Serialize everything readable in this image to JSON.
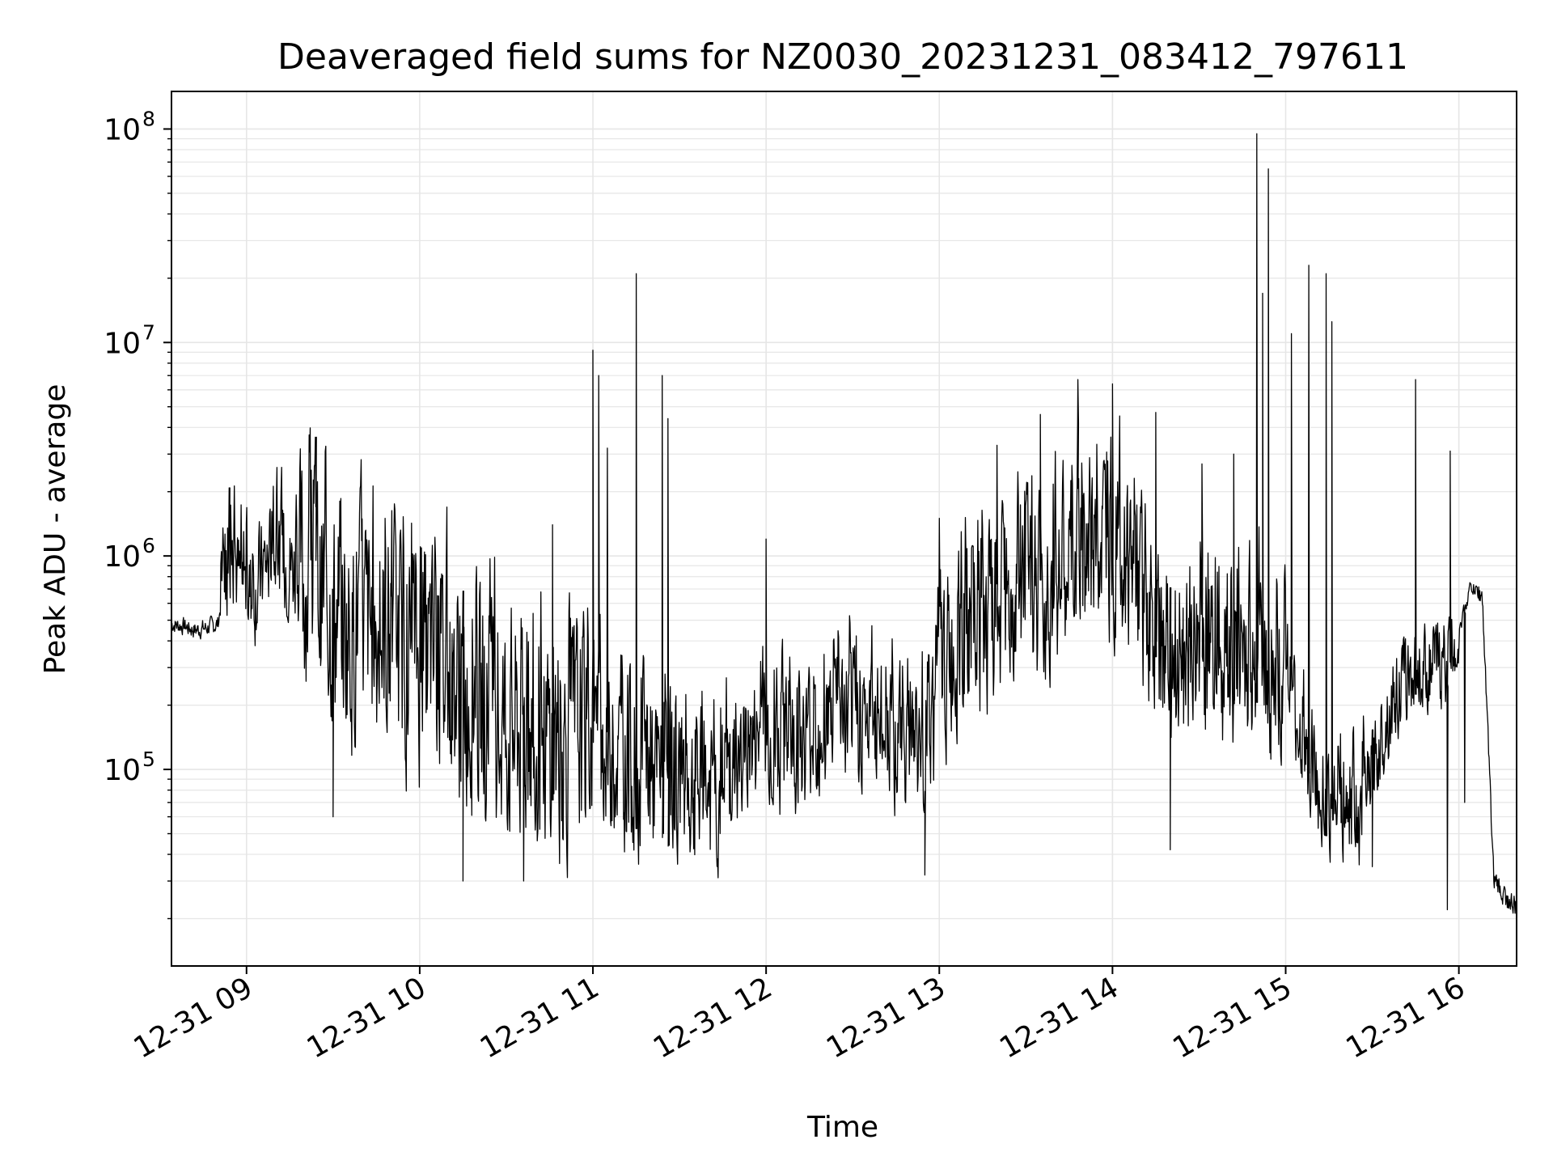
{
  "chart_data": {
    "type": "line",
    "title": "Deaveraged field sums for NZ0030_20231231_083412_797611",
    "xlabel": "Time",
    "ylabel": "Peak ADU - average",
    "yscale": "log",
    "ylim": [
      12000,
      150000000
    ],
    "xlim": [
      "2023-12-31 08:34",
      "2023-12-31 16:20"
    ],
    "grid": true,
    "line_color": "#000000",
    "grid_color": "#e6e6e6",
    "x_ticks": [
      {
        "label": "12-31 09",
        "value": "2023-12-31 09:00"
      },
      {
        "label": "12-31 10",
        "value": "2023-12-31 10:00"
      },
      {
        "label": "12-31 11",
        "value": "2023-12-31 11:00"
      },
      {
        "label": "12-31 12",
        "value": "2023-12-31 12:00"
      },
      {
        "label": "12-31 13",
        "value": "2023-12-31 13:00"
      },
      {
        "label": "12-31 14",
        "value": "2023-12-31 14:00"
      },
      {
        "label": "12-31 15",
        "value": "2023-12-31 15:00"
      },
      {
        "label": "12-31 16",
        "value": "2023-12-31 16:00"
      }
    ],
    "y_ticks": [
      {
        "base": "10",
        "exp": "5",
        "value": 100000
      },
      {
        "base": "10",
        "exp": "6",
        "value": 1000000
      },
      {
        "base": "10",
        "exp": "7",
        "value": 10000000
      },
      {
        "base": "10",
        "exp": "8",
        "value": 100000000
      }
    ],
    "series": [
      {
        "x": [
          "2023-12-31 08:34",
          "2023-12-31 08:38",
          "2023-12-31 08:42",
          "2023-12-31 08:46",
          "2023-12-31 08:50",
          "2023-12-31 08:53",
          "2023-12-31 08:55",
          "2023-12-31 08:58",
          "2023-12-31 09:02",
          "2023-12-31 09:06",
          "2023-12-31 09:10",
          "2023-12-31 09:15",
          "2023-12-31 09:20",
          "2023-12-31 09:25",
          "2023-12-31 09:30",
          "2023-12-31 09:35",
          "2023-12-31 09:40",
          "2023-12-31 09:45",
          "2023-12-31 09:50",
          "2023-12-31 09:55",
          "2023-12-31 10:00",
          "2023-12-31 10:05",
          "2023-12-31 10:10",
          "2023-12-31 10:15",
          "2023-12-31 10:20",
          "2023-12-31 10:25",
          "2023-12-31 10:30",
          "2023-12-31 10:35",
          "2023-12-31 10:40",
          "2023-12-31 10:45",
          "2023-12-31 10:50",
          "2023-12-31 10:55",
          "2023-12-31 11:00",
          "2023-12-31 11:05",
          "2023-12-31 11:10",
          "2023-12-31 11:15",
          "2023-12-31 11:20",
          "2023-12-31 11:25",
          "2023-12-31 11:30",
          "2023-12-31 11:35",
          "2023-12-31 11:40",
          "2023-12-31 11:45",
          "2023-12-31 11:50",
          "2023-12-31 11:55",
          "2023-12-31 12:00",
          "2023-12-31 12:05",
          "2023-12-31 12:10",
          "2023-12-31 12:15",
          "2023-12-31 12:20",
          "2023-12-31 12:25",
          "2023-12-31 12:30",
          "2023-12-31 12:35",
          "2023-12-31 12:40",
          "2023-12-31 12:45",
          "2023-12-31 12:50",
          "2023-12-31 12:55",
          "2023-12-31 13:00",
          "2023-12-31 13:05",
          "2023-12-31 13:10",
          "2023-12-31 13:15",
          "2023-12-31 13:20",
          "2023-12-31 13:25",
          "2023-12-31 13:30",
          "2023-12-31 13:35",
          "2023-12-31 13:40",
          "2023-12-31 13:45",
          "2023-12-31 13:50",
          "2023-12-31 13:55",
          "2023-12-31 14:00",
          "2023-12-31 14:05",
          "2023-12-31 14:10",
          "2023-12-31 14:15",
          "2023-12-31 14:20",
          "2023-12-31 14:25",
          "2023-12-31 14:30",
          "2023-12-31 14:35",
          "2023-12-31 14:40",
          "2023-12-31 14:45",
          "2023-12-31 14:50",
          "2023-12-31 14:55",
          "2023-12-31 15:00",
          "2023-12-31 15:05",
          "2023-12-31 15:10",
          "2023-12-31 15:15",
          "2023-12-31 15:20",
          "2023-12-31 15:25",
          "2023-12-31 15:30",
          "2023-12-31 15:35",
          "2023-12-31 15:40",
          "2023-12-31 15:45",
          "2023-12-31 15:50",
          "2023-12-31 15:55",
          "2023-12-31 16:00",
          "2023-12-31 16:04",
          "2023-12-31 16:08",
          "2023-12-31 16:12",
          "2023-12-31 16:16",
          "2023-12-31 16:20"
        ],
        "y": [
          480000,
          470000,
          450000,
          460000,
          480000,
          900000,
          1000000,
          700000,
          650000,
          900000,
          1000000,
          900000,
          800000,
          700000,
          550000,
          450000,
          500000,
          420000,
          380000,
          350000,
          320000,
          300000,
          260000,
          230000,
          200000,
          180000,
          160000,
          150000,
          140000,
          130000,
          130000,
          150000,
          170000,
          120000,
          110000,
          100000,
          90000,
          85000,
          80000,
          80000,
          75000,
          78000,
          100000,
          130000,
          140000,
          130000,
          120000,
          150000,
          170000,
          180000,
          170000,
          160000,
          150000,
          140000,
          140000,
          120000,
          280000,
          350000,
          400000,
          450000,
          500000,
          550000,
          600000,
          700000,
          800000,
          900000,
          1000000,
          1100000,
          1200000,
          1000000,
          600000,
          450000,
          300000,
          250000,
          400000,
          350000,
          300000,
          320000,
          350000,
          300000,
          250000,
          140000,
          90000,
          70000,
          60000,
          55000,
          100000,
          180000,
          250000,
          290000,
          300000,
          320000,
          450000,
          720000,
          650000,
          30000,
          25000,
          22000
        ],
        "peaks": [
          {
            "x": "2023-12-31 08:54",
            "y": 2000000
          },
          {
            "x": "2023-12-31 09:24",
            "y": 1700000
          },
          {
            "x": "2023-12-31 09:30",
            "y": 60000
          },
          {
            "x": "2023-12-31 09:48",
            "y": 1500000
          },
          {
            "x": "2023-12-31 10:15",
            "y": 30000
          },
          {
            "x": "2023-12-31 10:36",
            "y": 30000
          },
          {
            "x": "2023-12-31 10:46",
            "y": 1400000
          },
          {
            "x": "2023-12-31 11:00",
            "y": 9200000
          },
          {
            "x": "2023-12-31 11:02",
            "y": 7000000
          },
          {
            "x": "2023-12-31 11:05",
            "y": 3200000
          },
          {
            "x": "2023-12-31 11:15",
            "y": 21000000
          },
          {
            "x": "2023-12-31 11:24",
            "y": 7000000
          },
          {
            "x": "2023-12-31 11:26",
            "y": 4400000
          },
          {
            "x": "2023-12-31 12:00",
            "y": 1200000
          },
          {
            "x": "2023-12-31 12:55",
            "y": 32000
          },
          {
            "x": "2023-12-31 13:00",
            "y": 1500000
          },
          {
            "x": "2023-12-31 13:20",
            "y": 3300000
          },
          {
            "x": "2023-12-31 13:35",
            "y": 4600000
          },
          {
            "x": "2023-12-31 13:48",
            "y": 6700000
          },
          {
            "x": "2023-12-31 14:00",
            "y": 6400000
          },
          {
            "x": "2023-12-31 14:15",
            "y": 4700000
          },
          {
            "x": "2023-12-31 14:20",
            "y": 42000
          },
          {
            "x": "2023-12-31 14:31",
            "y": 2700000
          },
          {
            "x": "2023-12-31 14:42",
            "y": 3000000
          },
          {
            "x": "2023-12-31 14:50",
            "y": 95000000
          },
          {
            "x": "2023-12-31 14:52",
            "y": 17000000
          },
          {
            "x": "2023-12-31 14:54",
            "y": 65000000
          },
          {
            "x": "2023-12-31 15:02",
            "y": 11000000
          },
          {
            "x": "2023-12-31 15:08",
            "y": 23000000
          },
          {
            "x": "2023-12-31 15:14",
            "y": 21000000
          },
          {
            "x": "2023-12-31 15:16",
            "y": 12500000
          },
          {
            "x": "2023-12-31 15:30",
            "y": 35000
          },
          {
            "x": "2023-12-31 15:45",
            "y": 6700000
          },
          {
            "x": "2023-12-31 15:56",
            "y": 22000
          },
          {
            "x": "2023-12-31 15:57",
            "y": 3100000
          },
          {
            "x": "2023-12-31 16:02",
            "y": 70000
          }
        ]
      }
    ]
  }
}
